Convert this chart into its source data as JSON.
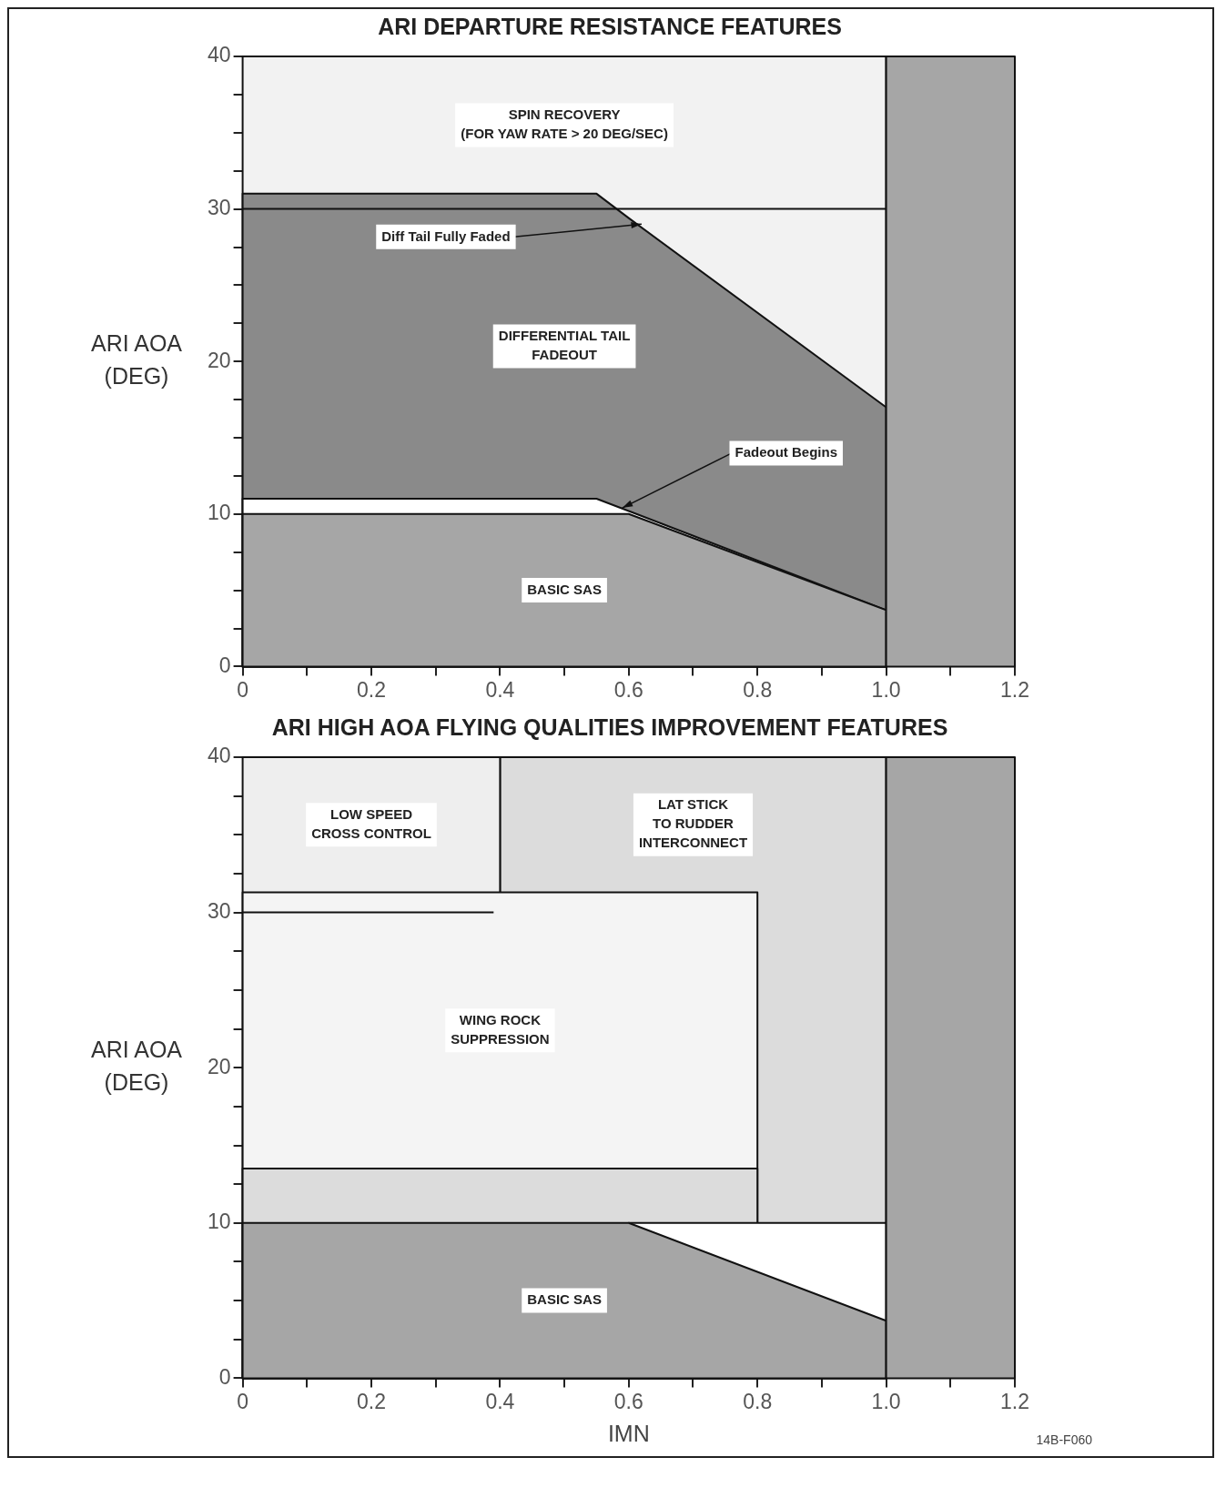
{
  "chart_data": [
    {
      "type": "area",
      "title": "ARI DEPARTURE RESISTANCE FEATURES",
      "ylabel": "ARI AOA\n(DEG)",
      "xlim": [
        0,
        1.2
      ],
      "ylim": [
        0,
        40
      ],
      "xticks": [
        0,
        {
          "value": 0.1,
          "label": null
        },
        0.2,
        {
          "value": 0.3,
          "label": null
        },
        0.4,
        {
          "value": 0.5,
          "label": null
        },
        0.6,
        {
          "value": 0.7,
          "label": null
        },
        0.8,
        {
          "value": 0.9,
          "label": null
        },
        {
          "value": 1,
          "label": "1.0"
        },
        {
          "value": 1.1,
          "label": null
        },
        1.2
      ],
      "yticks": [
        0,
        {
          "value": 2.5,
          "label": null
        },
        {
          "value": 5,
          "label": null
        },
        {
          "value": 7.5,
          "label": null
        },
        10,
        {
          "value": 12.5,
          "label": null
        },
        {
          "value": 15,
          "label": null
        },
        {
          "value": 17.5,
          "label": null
        },
        20,
        {
          "value": 22.5,
          "label": null
        },
        {
          "value": 25,
          "label": null
        },
        {
          "value": 27.5,
          "label": null
        },
        30,
        {
          "value": 32.5,
          "label": null
        },
        {
          "value": 35,
          "label": null
        },
        {
          "value": 37.5,
          "label": null
        },
        40
      ],
      "series": [
        {
          "name": "SPIN RECOVERY\n(FOR YAW RATE > 20 DEG/SEC)",
          "color": "#f2f2f2",
          "x": [
            0,
            1.0
          ],
          "values": [
            40,
            40
          ]
        },
        {
          "name": "DIFFERENTIAL TAIL\nFADEOUT",
          "color": "#8a8a8a",
          "x": [
            0,
            0.55,
            0.6,
            1.0
          ],
          "values": [
            31,
            31,
            29.4,
            17
          ]
        },
        {
          "type": "line",
          "color": "#111111",
          "x": [
            0,
            1.0
          ],
          "values": [
            30,
            30
          ]
        },
        {
          "color": "#ffffff",
          "x": [
            0,
            0.55,
            0.6,
            1.0
          ],
          "values": [
            11,
            11,
            10.2,
            3.7
          ]
        },
        {
          "name": "BASIC SAS",
          "color": "#a6a6a6",
          "x": [
            0,
            0.6,
            1.0
          ],
          "values": [
            10,
            10,
            3.7
          ]
        },
        {
          "color": "#a6a6a6",
          "x": [
            1.0,
            1.2
          ],
          "values": [
            40,
            40
          ]
        }
      ],
      "annotations": [
        {
          "text": "Diff Tail Fully Faded",
          "x": 0.62,
          "y": 29
        },
        {
          "text": "Fadeout Begins",
          "x": 0.59,
          "y": 10.4
        }
      ]
    },
    {
      "type": "area",
      "title": "ARI HIGH AOA FLYING QUALITIES IMPROVEMENT FEATURES",
      "ylabel": "ARI AOA\n(DEG)",
      "xlabel": "IMN",
      "xlim": [
        0,
        1.2
      ],
      "ylim": [
        0,
        40
      ],
      "xticks": [
        0,
        {
          "value": 0.1,
          "label": null
        },
        0.2,
        {
          "value": 0.3,
          "label": null
        },
        0.4,
        {
          "value": 0.5,
          "label": null
        },
        0.6,
        {
          "value": 0.7,
          "label": null
        },
        0.8,
        {
          "value": 0.9,
          "label": null
        },
        {
          "value": 1,
          "label": "1.0"
        },
        {
          "value": 1.1,
          "label": null
        },
        1.2
      ],
      "yticks": [
        0,
        {
          "value": 2.5,
          "label": null
        },
        {
          "value": 5,
          "label": null
        },
        {
          "value": 7.5,
          "label": null
        },
        10,
        {
          "value": 12.5,
          "label": null
        },
        {
          "value": 15,
          "label": null
        },
        {
          "value": 17.5,
          "label": null
        },
        20,
        {
          "value": 22.5,
          "label": null
        },
        {
          "value": 25,
          "label": null
        },
        {
          "value": 27.5,
          "label": null
        },
        30,
        {
          "value": 32.5,
          "label": null
        },
        {
          "value": 35,
          "label": null
        },
        {
          "value": 37.5,
          "label": null
        },
        40
      ],
      "series": [
        {
          "name": "LAT STICK\nTO RUDDER\nINTERCONNECT",
          "color": "#dcdcdc",
          "x": [
            0.4,
            1.0
          ],
          "values": [
            40,
            40
          ]
        },
        {
          "name": "LOW SPEED\nCROSS CONTROL",
          "color": "#eeeeee",
          "x": [
            0,
            0.4
          ],
          "values": [
            40,
            40
          ]
        },
        {
          "name": "WING ROCK\nSUPPRESSION",
          "color": "#f4f4f4",
          "x": [
            0,
            0.8
          ],
          "values": [
            31.3,
            31.3
          ]
        },
        {
          "type": "line",
          "color": "#111111",
          "x": [
            0,
            0.39
          ],
          "values": [
            30,
            30
          ]
        },
        {
          "color": "#dcdcdc",
          "x": [
            0,
            0.8
          ],
          "values": [
            13.5,
            13.5
          ]
        },
        {
          "color": "#ffffff",
          "x": [
            0.6,
            1.0
          ],
          "values": [
            10,
            10
          ]
        },
        {
          "name": "BASIC SAS",
          "color": "#a6a6a6",
          "x": [
            0,
            0.6,
            1.0
          ],
          "values": [
            10,
            10,
            3.7
          ]
        },
        {
          "color": "#a6a6a6",
          "x": [
            1.0,
            1.2
          ],
          "values": [
            40,
            40
          ]
        }
      ],
      "annotations": [
        "14B-F060"
      ]
    }
  ]
}
